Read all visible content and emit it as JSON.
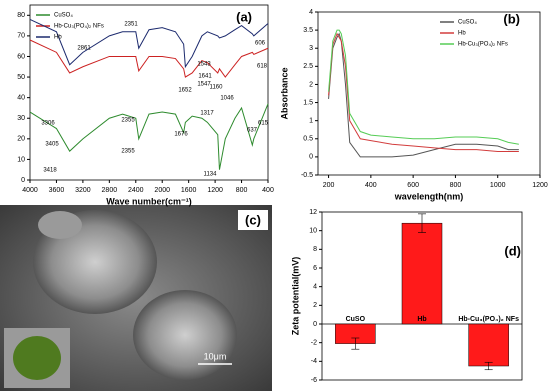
{
  "chart_data": [
    {
      "type": "line",
      "panel_label": "(a)",
      "xlabel": "Wave number(cm⁻¹)",
      "x": [
        4000,
        3600,
        3400,
        3200,
        2800,
        2600,
        2400,
        2355,
        2200,
        2000,
        1800,
        1676,
        1650,
        1547,
        1400,
        1317,
        1160,
        1134,
        1046,
        900,
        800,
        637,
        615,
        400
      ],
      "xlim": [
        4000,
        400
      ],
      "xticks": [
        4000,
        3600,
        3200,
        2800,
        2400,
        2000,
        1600,
        1200,
        800,
        400
      ],
      "ylim": [
        0,
        85
      ],
      "yticks": [
        0,
        10,
        20,
        30,
        40,
        50,
        60,
        70,
        80
      ],
      "legend": "upper left",
      "series": [
        {
          "name": "CuSO₄",
          "color": "#2e8b2e",
          "values": [
            33,
            25,
            14,
            20,
            30,
            32,
            30,
            20,
            32,
            33,
            32,
            23,
            28,
            31,
            30,
            28,
            22,
            5,
            20,
            30,
            35,
            17,
            20,
            37
          ]
        },
        {
          "name": "Hb-Cu₃(PO₄)₂ NFs",
          "color": "#cc2222",
          "values": [
            68,
            62,
            52,
            55,
            60,
            60,
            60,
            53,
            60,
            60,
            59,
            54,
            50,
            52,
            58,
            57,
            52,
            54,
            50,
            56,
            60,
            62,
            61,
            64
          ]
        },
        {
          "name": "Hb",
          "color": "#1c2a6e",
          "values": [
            78,
            72,
            56,
            62,
            70,
            72,
            72,
            64,
            73,
            74,
            72,
            66,
            55,
            60,
            70,
            72,
            70,
            69,
            70,
            73,
            75,
            71,
            70,
            76
          ]
        }
      ],
      "annotations": [
        "2351",
        "2861",
        "3306",
        "1641",
        "1543",
        "1652",
        "1547",
        "1160",
        "1046",
        "606",
        "618",
        "3405",
        "2355",
        "2355",
        "1676",
        "1317",
        "637",
        "615",
        "3418",
        "1134"
      ]
    },
    {
      "type": "line",
      "panel_label": "(b)",
      "xlabel": "wavelength(nm)",
      "ylabel": "Absorbance",
      "x": [
        200,
        220,
        240,
        250,
        260,
        280,
        300,
        350,
        400,
        500,
        600,
        700,
        800,
        900,
        1000,
        1050,
        1100
      ],
      "xlim": [
        150,
        1200
      ],
      "xticks": [
        200,
        400,
        600,
        800,
        1000,
        1200
      ],
      "ylim": [
        -0.5,
        4.0
      ],
      "yticks": [
        -0.5,
        0.0,
        0.5,
        1.0,
        1.5,
        2.0,
        2.5,
        3.0,
        3.5,
        4.0
      ],
      "legend": "upper right",
      "series": [
        {
          "name": "CuSO₄",
          "color": "#555555",
          "values": [
            1.6,
            3.0,
            3.3,
            3.4,
            3.2,
            2.0,
            0.4,
            0.0,
            0.0,
            0.0,
            0.05,
            0.2,
            0.35,
            0.35,
            0.3,
            0.2,
            0.2
          ]
        },
        {
          "name": "Hb",
          "color": "#d23c3c",
          "values": [
            1.7,
            3.1,
            3.4,
            3.3,
            3.2,
            2.5,
            1.0,
            0.5,
            0.45,
            0.35,
            0.3,
            0.25,
            0.2,
            0.2,
            0.15,
            0.15,
            0.15
          ]
        },
        {
          "name": "Hb-Cu₃(PO₄)₂ NFs",
          "color": "#55cc55",
          "values": [
            1.8,
            3.2,
            3.5,
            3.5,
            3.4,
            2.8,
            1.2,
            0.7,
            0.6,
            0.55,
            0.5,
            0.5,
            0.55,
            0.55,
            0.5,
            0.4,
            0.35
          ]
        }
      ]
    },
    {
      "type": "bar",
      "panel_label": "(d)",
      "ylabel": "Zeta potential(mV)",
      "color": "#ff1a1a",
      "categories": [
        "CuSO",
        "Hb",
        "Hb-Cu₃(PO₄)₂ NFs"
      ],
      "values": [
        -2.1,
        10.8,
        -4.5
      ],
      "errors": [
        0.6,
        1.0,
        0.4
      ],
      "ylim": [
        -6,
        12
      ],
      "yticks": [
        -6,
        -4,
        -2,
        0,
        2,
        4,
        6,
        8,
        10,
        12
      ]
    }
  ],
  "image": {
    "panel_label": "(c)",
    "scale_bar": "10μm"
  }
}
